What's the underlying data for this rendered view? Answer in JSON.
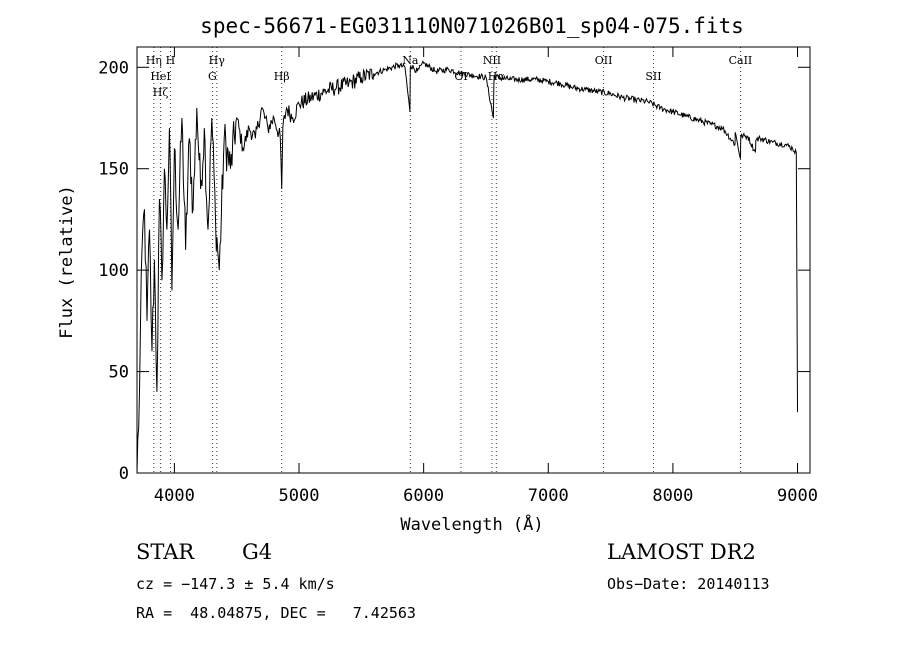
{
  "chart_data": {
    "type": "line",
    "title": "spec-56671-EG031110N071026B01_sp04-075.fits",
    "xlabel": "Wavelength (Å)",
    "ylabel": "Flux (relative)",
    "xlim": [
      3700,
      9100
    ],
    "ylim": [
      0,
      210
    ],
    "xticks": [
      4000,
      5000,
      6000,
      7000,
      8000,
      9000
    ],
    "yticks": [
      0,
      50,
      100,
      150,
      200
    ],
    "grid": false,
    "series": [
      {
        "name": "spectrum",
        "color": "#000000",
        "x": [
          3700,
          3720,
          3740,
          3760,
          3780,
          3800,
          3820,
          3840,
          3860,
          3880,
          3900,
          3920,
          3940,
          3960,
          3980,
          4000,
          4030,
          4060,
          4090,
          4120,
          4150,
          4180,
          4210,
          4240,
          4270,
          4300,
          4330,
          4360,
          4400,
          4450,
          4500,
          4550,
          4600,
          4650,
          4700,
          4750,
          4800,
          4850,
          4861,
          4870,
          4900,
          4950,
          5000,
          5100,
          5200,
          5300,
          5400,
          5500,
          5600,
          5700,
          5800,
          5850,
          5890,
          5893,
          5896,
          5950,
          6000,
          6100,
          6200,
          6300,
          6400,
          6500,
          6560,
          6563,
          6566,
          6600,
          6700,
          6800,
          6900,
          7000,
          7100,
          7200,
          7300,
          7400,
          7500,
          7600,
          7700,
          7800,
          7900,
          8000,
          8100,
          8200,
          8300,
          8400,
          8498,
          8500,
          8542,
          8545,
          8600,
          8662,
          8665,
          8700,
          8800,
          8900,
          8960,
          8990,
          9000
        ],
        "values": [
          0,
          40,
          110,
          130,
          75,
          120,
          60,
          105,
          40,
          135,
          95,
          150,
          120,
          170,
          90,
          160,
          120,
          175,
          110,
          165,
          130,
          180,
          140,
          170,
          120,
          175,
          125,
          100,
          165,
          150,
          175,
          160,
          170,
          165,
          180,
          170,
          175,
          165,
          140,
          170,
          180,
          175,
          182,
          185,
          188,
          190,
          192,
          195,
          197,
          199,
          201,
          200,
          178,
          200,
          201,
          198,
          202,
          198,
          199,
          197,
          196,
          195,
          175,
          190,
          196,
          195,
          194,
          194,
          194,
          193,
          192,
          190,
          189,
          188,
          187,
          185,
          184,
          183,
          180,
          178,
          176,
          174,
          172,
          170,
          162,
          168,
          155,
          166,
          166,
          158,
          164,
          165,
          163,
          162,
          160,
          158,
          30
        ]
      }
    ],
    "lines": [
      {
        "wavelength": 3835,
        "labels": [
          "Hη"
        ],
        "color": "#8b1a1a"
      },
      {
        "wavelength": 3889,
        "labels": [
          "HeI",
          "Hζ"
        ],
        "color": "#8b1a1a"
      },
      {
        "wavelength": 3968,
        "labels": [
          "H"
        ],
        "color": "#8b1a1a"
      },
      {
        "wavelength": 4305,
        "labels": [
          "G"
        ],
        "color": "#8b1a1a"
      },
      {
        "wavelength": 4340,
        "labels": [
          "Hγ"
        ],
        "color": "#8b1a1a"
      },
      {
        "wavelength": 4861,
        "labels": [
          "Hβ"
        ],
        "color": "#8b1a1a"
      },
      {
        "wavelength": 5893,
        "labels": [
          "Na"
        ],
        "color": "#8b1a1a"
      },
      {
        "wavelength": 6300,
        "labels": [
          "OI"
        ],
        "color": "#8b1a1a"
      },
      {
        "wavelength": 6548,
        "labels": [
          "NII"
        ],
        "color": "#8b1a1a"
      },
      {
        "wavelength": 6583,
        "labels": [
          "Hα"
        ],
        "color": "#8b1a1a"
      },
      {
        "wavelength": 7444,
        "labels": [
          "OII"
        ],
        "color": "#8b1a1a"
      },
      {
        "wavelength": 7844,
        "labels": [
          "SII"
        ],
        "color": "#8b1a1a"
      },
      {
        "wavelength": 8542,
        "labels": [
          "CaII"
        ],
        "color": "#8b1a1a"
      }
    ]
  },
  "info": {
    "class_label": "STAR",
    "subclass": "G4",
    "survey": "LAMOST DR2",
    "cz": "cz = −147.3 ± 5.4 km/s",
    "obs_date": "Obs−Date: 20140113",
    "coords": "RA =  48.04875, DEC =   7.42563"
  }
}
